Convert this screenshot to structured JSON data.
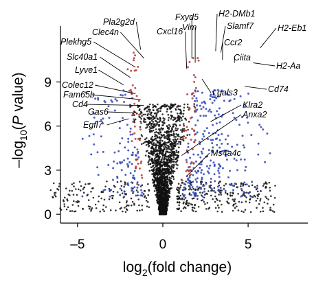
{
  "chart_data": {
    "type": "scatter",
    "title": "",
    "xlabel": {
      "prefix": "log",
      "sub": "2",
      "suffix": "(fold change)"
    },
    "ylabel": {
      "prefix": "–log",
      "sub": "10",
      "mid": "(",
      "italic": "P",
      "suffix": " value)"
    },
    "xlim": [
      -6,
      8.5
    ],
    "ylim": [
      -0.6,
      12.8
    ],
    "xticks": [
      {
        "value": -5,
        "label": "–5"
      },
      {
        "value": 0,
        "label": "0"
      },
      {
        "value": 5,
        "label": "5"
      }
    ],
    "yticks": [
      {
        "value": 0,
        "label": "0"
      },
      {
        "value": 3,
        "label": "3"
      },
      {
        "value": 6,
        "label": "6"
      },
      {
        "value": 9,
        "label": "9"
      }
    ],
    "colors": {
      "not_significant": "#111111",
      "significant": "#2f45b6",
      "labeled_highlight": "#b43a2a",
      "axis": "#000000"
    },
    "labeled_genes": [
      {
        "name": "Pla2g2d",
        "x": -1.3,
        "y": 11.2
      },
      {
        "name": "Clec4n",
        "x": -1.1,
        "y": 10.6
      },
      {
        "name": "Plekhg5",
        "x": -1.6,
        "y": 10.0
      },
      {
        "name": "Slc40a1",
        "x": -1.9,
        "y": 9.3
      },
      {
        "name": "Lyve1",
        "x": -2.3,
        "y": 8.8
      },
      {
        "name": "Colec12",
        "x": -1.6,
        "y": 8.2
      },
      {
        "name": "Fam65b",
        "x": -1.3,
        "y": 7.8
      },
      {
        "name": "Cd4",
        "x": -1.1,
        "y": 7.4
      },
      {
        "name": "Gas6",
        "x": -1.5,
        "y": 6.9
      },
      {
        "name": "Egfl7",
        "x": -2.0,
        "y": 6.5
      },
      {
        "name": "Fxyd5",
        "x": 1.7,
        "y": 10.6
      },
      {
        "name": "Vim",
        "x": 1.9,
        "y": 10.3
      },
      {
        "name": "Cxcl16",
        "x": 1.4,
        "y": 9.9
      },
      {
        "name": "H2-DMb1",
        "x": 3.1,
        "y": 11.1
      },
      {
        "name": "Slamf7",
        "x": 3.4,
        "y": 11.0
      },
      {
        "name": "Ccr2",
        "x": 3.5,
        "y": 10.5
      },
      {
        "name": "H2-Eb1",
        "x": 5.7,
        "y": 11.3
      },
      {
        "name": "Ciita",
        "x": 4.2,
        "y": 10.3
      },
      {
        "name": "H2-Aa",
        "x": 5.3,
        "y": 10.3
      },
      {
        "name": "Lgals3",
        "x": 2.3,
        "y": 9.2
      },
      {
        "name": "Cd74",
        "x": 4.8,
        "y": 8.7
      },
      {
        "name": "Klra2",
        "x": 2.8,
        "y": 6.3
      },
      {
        "name": "Anxa2",
        "x": 1.1,
        "y": 4.0
      },
      {
        "name": "Ms4a4c",
        "x": 1.4,
        "y": 2.6
      }
    ]
  }
}
